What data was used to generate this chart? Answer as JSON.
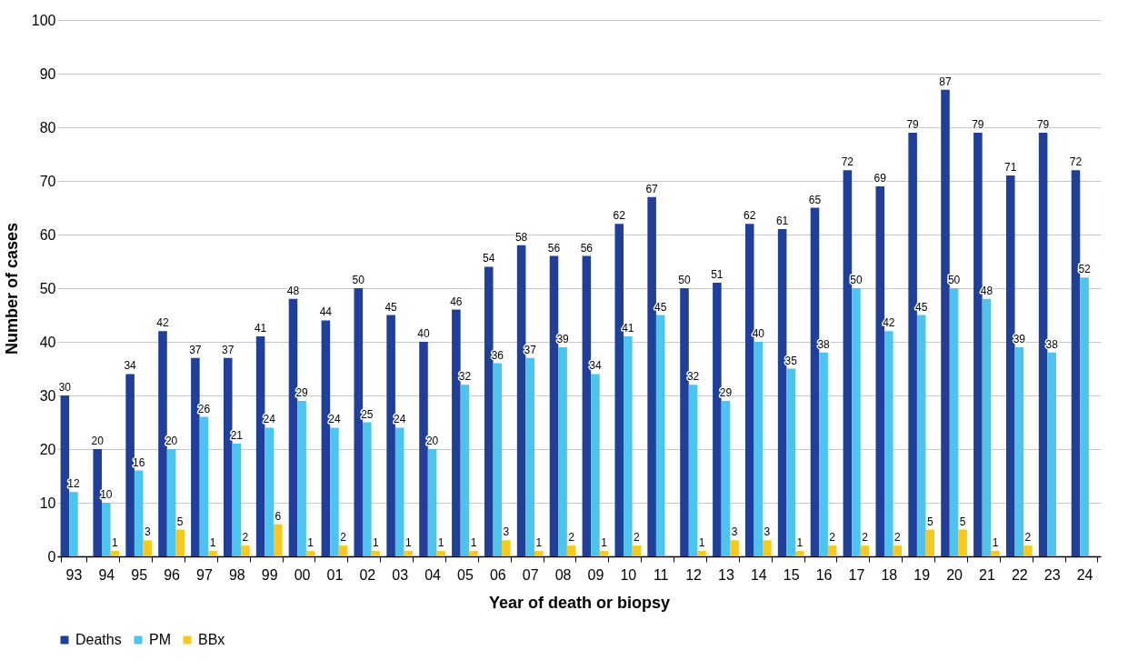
{
  "chart_data": {
    "type": "bar",
    "xlabel": "Year of death or biopsy",
    "ylabel": "Number of cases",
    "categories": [
      "93",
      "94",
      "95",
      "96",
      "97",
      "98",
      "99",
      "00",
      "01",
      "02",
      "03",
      "04",
      "05",
      "06",
      "07",
      "08",
      "09",
      "10",
      "11",
      "12",
      "13",
      "14",
      "15",
      "16",
      "17",
      "18",
      "19",
      "20",
      "21",
      "22",
      "23",
      "24"
    ],
    "series": [
      {
        "name": "Deaths",
        "color": "#1f3f99",
        "values": [
          30,
          20,
          34,
          42,
          37,
          37,
          41,
          48,
          44,
          50,
          45,
          40,
          46,
          54,
          58,
          56,
          56,
          62,
          67,
          50,
          51,
          62,
          61,
          65,
          72,
          69,
          79,
          87,
          79,
          71,
          79,
          72
        ]
      },
      {
        "name": "PM",
        "color": "#4dc3ee",
        "values": [
          12,
          10,
          16,
          20,
          26,
          21,
          24,
          29,
          24,
          25,
          24,
          20,
          32,
          36,
          37,
          39,
          34,
          41,
          45,
          32,
          29,
          40,
          35,
          38,
          50,
          42,
          45,
          50,
          48,
          39,
          38,
          52
        ]
      },
      {
        "name": "BBx",
        "color": "#f7c81e",
        "values": [
          null,
          1,
          3,
          5,
          1,
          2,
          6,
          1,
          2,
          1,
          1,
          1,
          1,
          3,
          1,
          2,
          1,
          2,
          null,
          1,
          3,
          3,
          1,
          2,
          2,
          2,
          5,
          5,
          1,
          2,
          null,
          null
        ]
      }
    ],
    "ylim": [
      0,
      100
    ],
    "yticks": [
      0,
      10,
      20,
      30,
      40,
      50,
      60,
      70,
      80,
      90,
      100
    ],
    "grid": "y",
    "legend": "bottom",
    "data_labels": true
  }
}
